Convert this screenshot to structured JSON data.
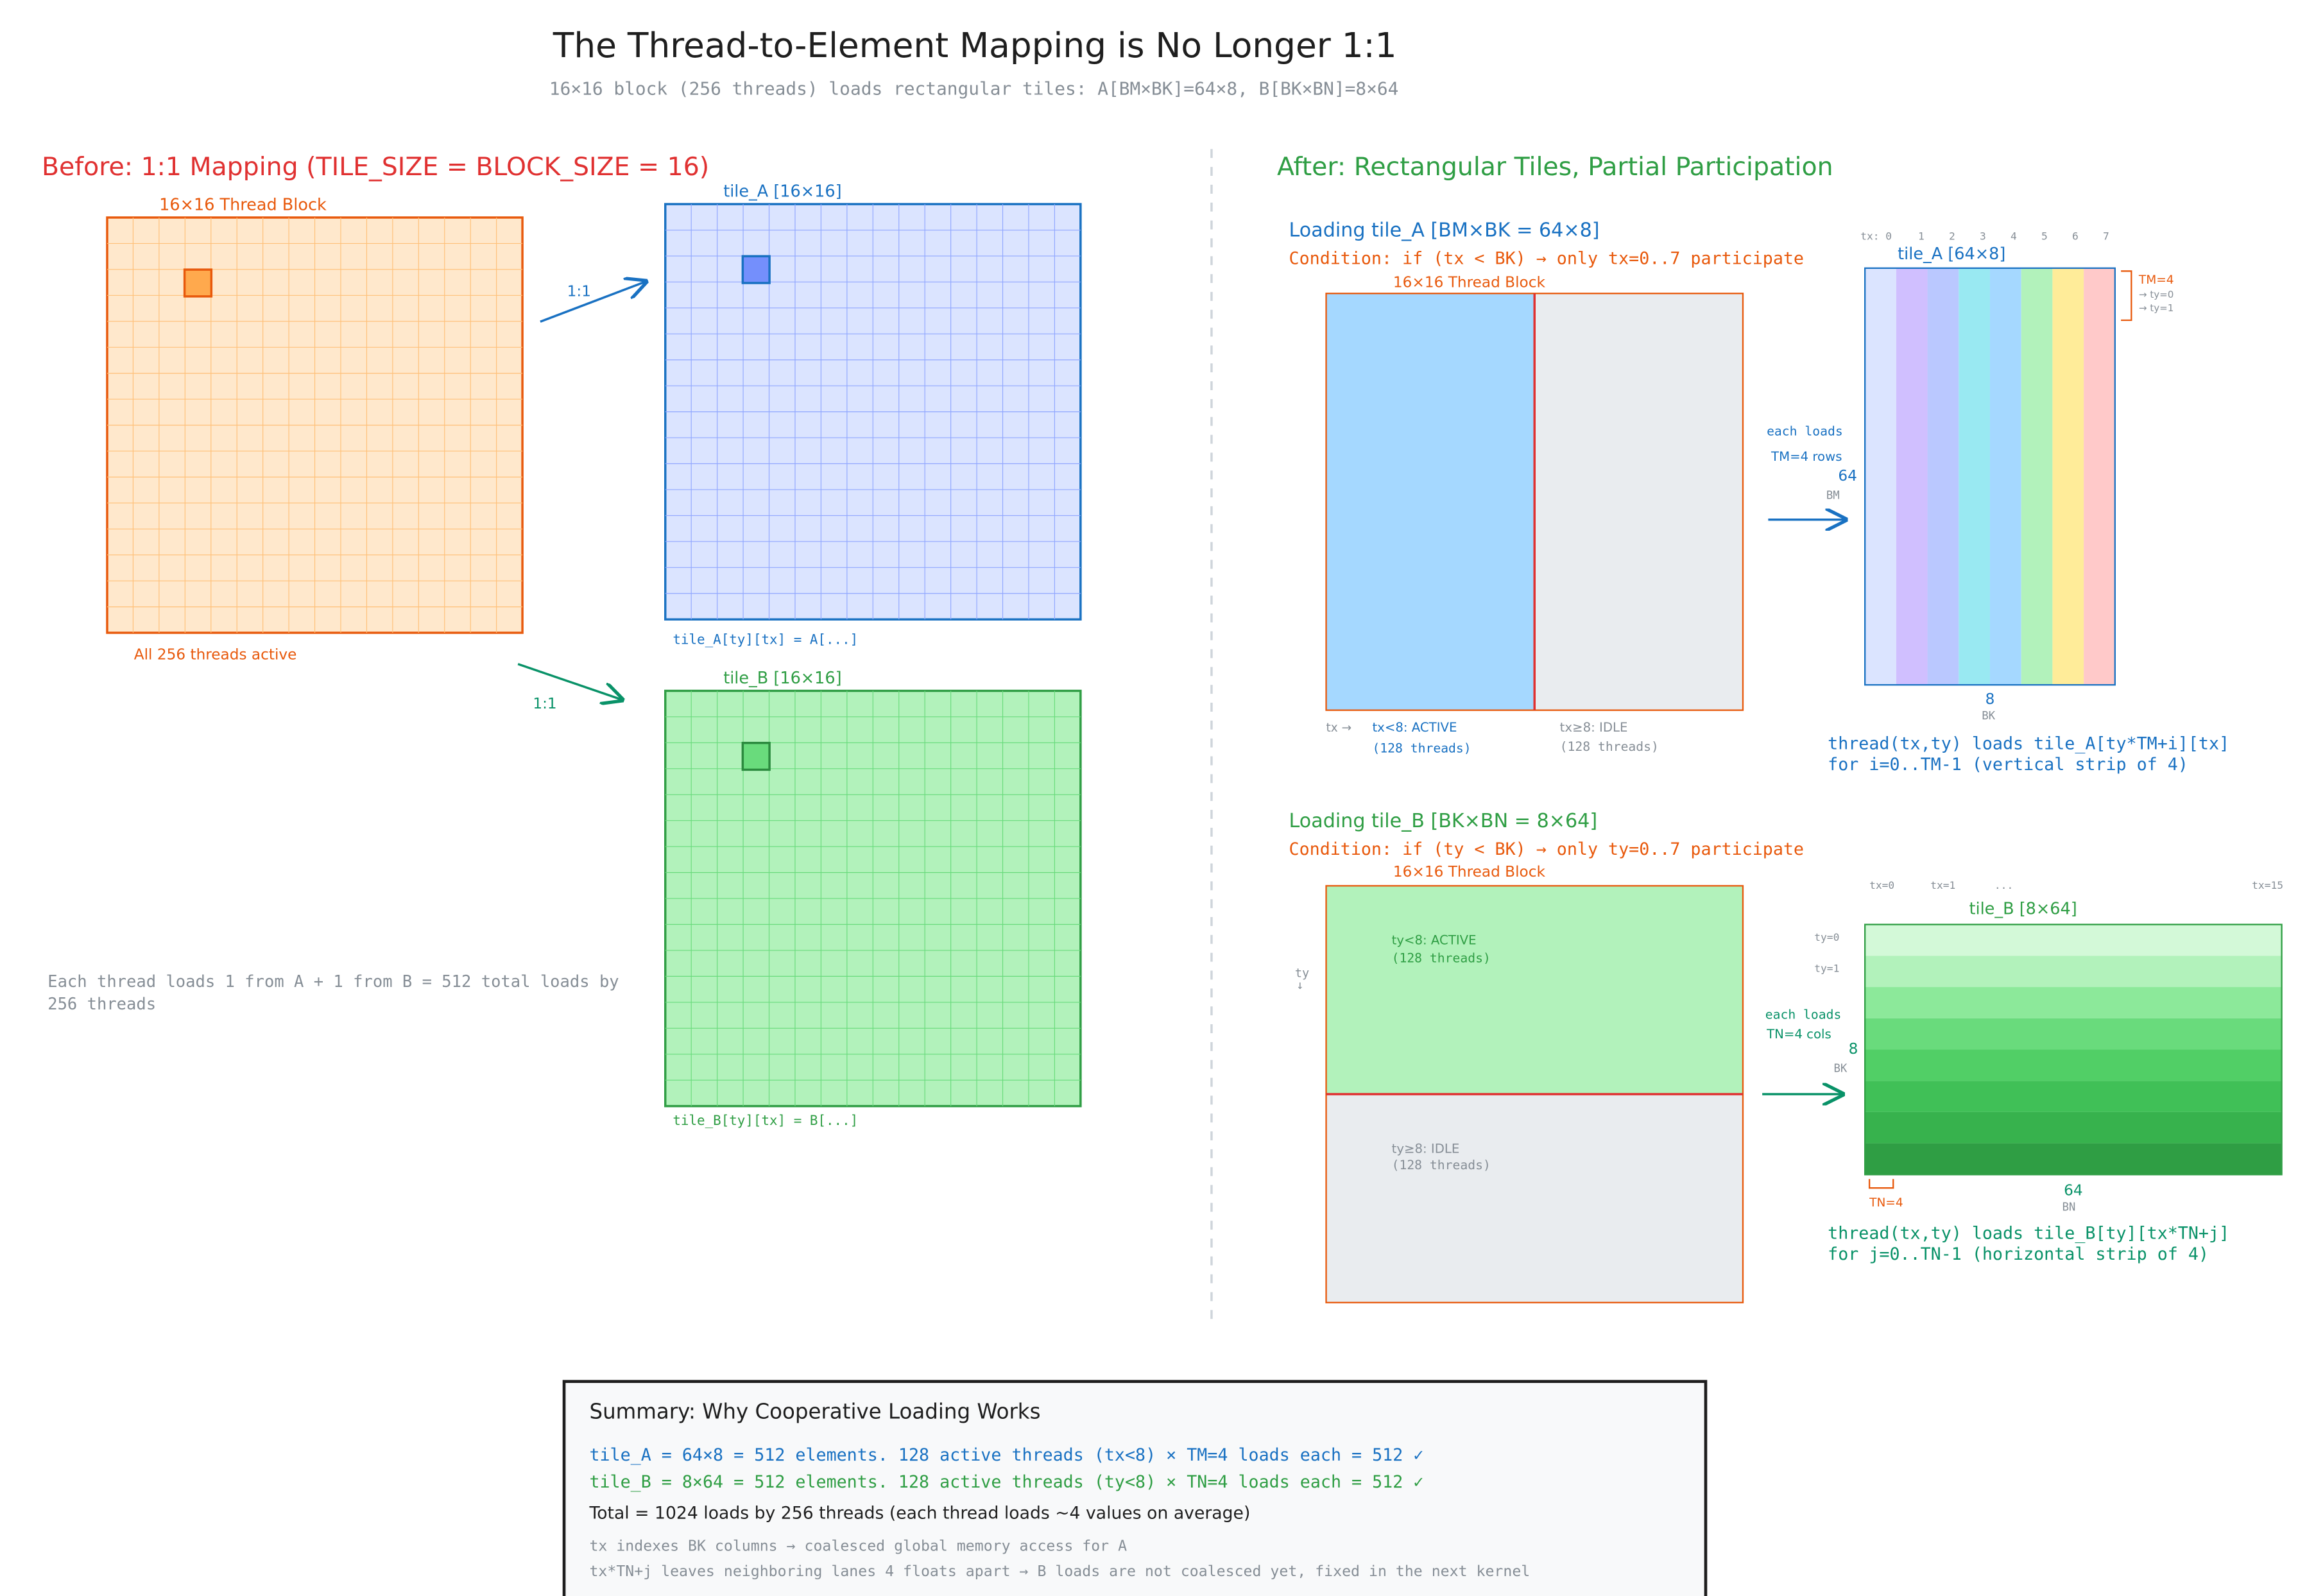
{
  "header": {
    "title": "The Thread-to-Element Mapping is No Longer 1:1",
    "subtitle": "16×16 block (256 threads) loads rectangular tiles: A[BM×BK]=64×8, B[BK×BN]=8×64"
  },
  "before": {
    "heading": "Before: 1:1 Mapping (TILE_SIZE = BLOCK_SIZE = 16)",
    "block_label": "16×16 Thread Block",
    "block_caption": "All 256 threads active",
    "arrow_a": "1:1",
    "arrow_b": "1:1",
    "tile_a_label": "tile_A [16×16]",
    "tile_a_caption": "tile_A[ty][tx] = A[...]",
    "tile_b_label": "tile_B [16×16]",
    "tile_b_caption": "tile_B[ty][tx] = B[...]",
    "note_lines": [
      "Each thread loads 1 from A + 1 from B = 512 total loads by",
      "256 threads"
    ]
  },
  "after": {
    "heading": "After: Rectangular Tiles, Partial Participation",
    "load_a": {
      "title": "Loading tile_A [BM×BK = 64×8]",
      "condition": "Condition: if (tx < BK) → only tx=0..7 participate",
      "block_label": "16×16 Thread Block",
      "axis": "tx →",
      "active": "tx<8: ACTIVE",
      "active_count": "(128 threads)",
      "idle": "tx≥8: IDLE",
      "idle_count": "(128 threads)",
      "arrow_note": [
        "each loads",
        "TM=4 rows"
      ],
      "rows": "64",
      "rows_name": "BM",
      "tile_label": "tile_A [64×8]",
      "col_labels": [
        "tx: 0",
        "1",
        "2",
        "3",
        "4",
        "5",
        "6",
        "7"
      ],
      "tm_note": [
        "TM=4",
        "→ ty=0",
        "→ ty=1"
      ],
      "cols": "8",
      "cols_name": "BK",
      "formula": [
        "thread(tx,ty) loads tile_A[ty*TM+i][tx]",
        "for i=0..TM-1  (vertical strip of 4)"
      ]
    },
    "load_b": {
      "title": "Loading tile_B [BK×BN = 8×64]",
      "condition": "Condition: if (ty < BK) → only ty=0..7 participate",
      "block_label": "16×16 Thread Block",
      "axis": [
        "ty",
        "↓"
      ],
      "active": "ty<8: ACTIVE",
      "active_count": "(128 threads)",
      "idle": "ty≥8: IDLE",
      "idle_count": "(128 threads)",
      "arrow_note": [
        "each loads",
        "TN=4 cols"
      ],
      "rows": "8",
      "rows_name": "BK",
      "tile_label": "tile_B [8×64]",
      "col_labels": [
        "tx=0",
        "tx=1",
        "...",
        "tx=15"
      ],
      "row_labels": [
        "ty=0",
        "ty=1"
      ],
      "tn_note": "TN=4",
      "cols": "64",
      "cols_name": "BN",
      "formula": [
        "thread(tx,ty) loads tile_B[ty][tx*TN+j]",
        "for j=0..TN-1  (horizontal strip of 4)"
      ]
    }
  },
  "summary": {
    "title": "Summary: Why Cooperative Loading Works",
    "line_a": "tile_A = 64×8 = 512 elements. 128 active threads (tx<8) × TM=4 loads each = 512  ✓",
    "line_b": "tile_B = 8×64 = 512 elements. 128 active threads (ty<8) × TN=4 loads each = 512  ✓",
    "total": "Total = 1024 loads by 256 threads (each thread loads ~4 values on average)",
    "note_1": "tx indexes BK columns → coalesced global memory access for A",
    "note_2": "tx*TN+j leaves neighboring lanes 4 floats apart → B loads are not coalesced yet, fixed in the next kernel"
  }
}
